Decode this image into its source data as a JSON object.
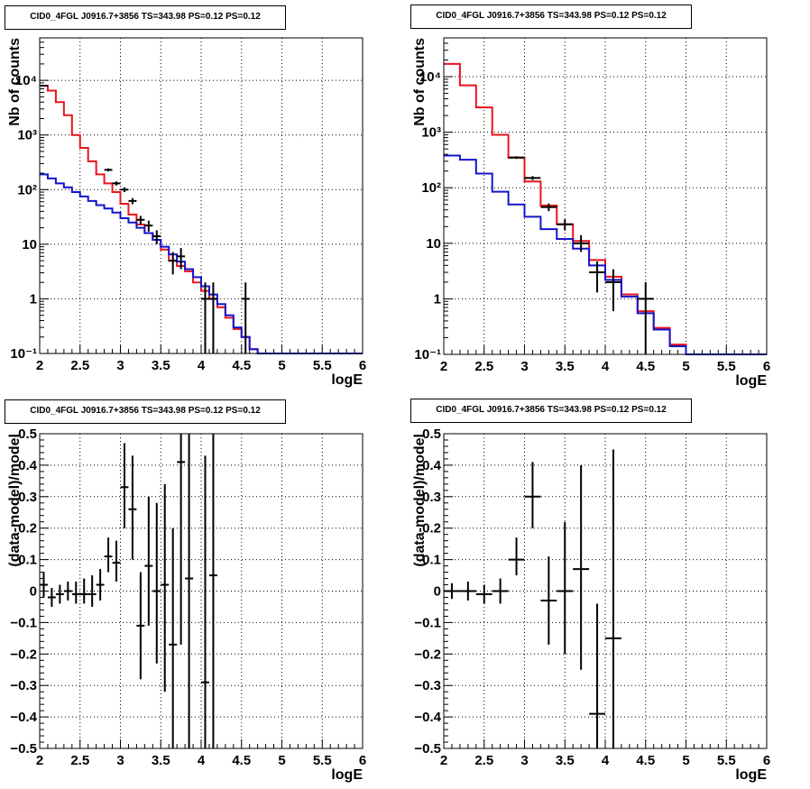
{
  "chart_data": [
    {
      "id": "p1",
      "type": "histogram",
      "title": "CID0_4FGL J0916.7+3856 TS=343.98 PS=0.12 PS=0.12",
      "xlabel": "logE",
      "ylabel": "Nb of counts",
      "xlim": [
        2,
        6
      ],
      "ylim": [
        0.1,
        60000
      ],
      "log_y": true,
      "grid": true,
      "x_ticks": [
        {
          "v": 2,
          "label": "2"
        },
        {
          "v": 2.5,
          "label": "2.5"
        },
        {
          "v": 3,
          "label": "3"
        },
        {
          "v": 3.5,
          "label": "3.5"
        },
        {
          "v": 4,
          "label": "4"
        },
        {
          "v": 4.5,
          "label": "4.5"
        },
        {
          "v": 5,
          "label": "5"
        },
        {
          "v": 5.5,
          "label": "5.5"
        },
        {
          "v": 6,
          "label": "6"
        }
      ],
      "y_ticks": [
        {
          "v": 0.1,
          "label": "10⁻¹"
        },
        {
          "v": 1,
          "label": "1"
        },
        {
          "v": 10,
          "label": "10"
        },
        {
          "v": 100,
          "label": "10²"
        },
        {
          "v": 1000,
          "label": "10³"
        },
        {
          "v": 10000,
          "label": "10⁴"
        }
      ],
      "bin_edges": [
        2.0,
        2.1,
        2.2,
        2.3,
        2.4,
        2.5,
        2.6,
        2.7,
        2.8,
        2.9,
        3.0,
        3.1,
        3.2,
        3.3,
        3.4,
        3.5,
        3.6,
        3.7,
        3.8,
        3.9,
        4.0,
        4.1,
        4.2,
        4.3,
        4.4,
        4.5,
        4.6,
        4.7,
        4.8,
        4.9,
        5.0,
        5.1,
        5.2,
        5.3,
        5.4,
        5.5,
        5.6,
        5.7,
        5.8,
        5.9,
        6.0
      ],
      "series": [
        {
          "color": "#e8131b",
          "values": [
            8000,
            6500,
            4000,
            2300,
            1000,
            580,
            330,
            190,
            130,
            90,
            55,
            35,
            23,
            16,
            12,
            8,
            5,
            4,
            3.2,
            2,
            1.4,
            1,
            0.7,
            0.45,
            0.28,
            0.2,
            0.12,
            0.1,
            0.1,
            0.1,
            0.1,
            0.1,
            0.1,
            0.1,
            0.1,
            0.1,
            0.1,
            0.1,
            0.1,
            0.1
          ]
        },
        {
          "color": "#1414cc",
          "values": [
            190,
            160,
            130,
            110,
            90,
            75,
            62,
            52,
            45,
            38,
            30,
            25,
            20,
            16,
            12,
            9,
            6.5,
            4.8,
            3.5,
            2.5,
            1.7,
            1.2,
            0.8,
            0.5,
            0.3,
            0.2,
            0.12,
            0.1,
            0.1,
            0.1,
            0.1,
            0.1,
            0.1,
            0.1,
            0.1,
            0.1,
            0.1,
            0.1,
            0.1,
            0.1
          ]
        }
      ],
      "points": [
        {
          "x": 2.05,
          "xerr": 0.05,
          "y": 8000,
          "lo": 7800,
          "hi": 8200
        },
        {
          "x": 2.85,
          "xerr": 0.05,
          "y": 230,
          "lo": 215,
          "hi": 245
        },
        {
          "x": 2.95,
          "xerr": 0.05,
          "y": 130,
          "lo": 119,
          "hi": 141
        },
        {
          "x": 3.05,
          "xerr": 0.05,
          "y": 100,
          "lo": 90,
          "hi": 110
        },
        {
          "x": 3.15,
          "xerr": 0.05,
          "y": 62,
          "lo": 54,
          "hi": 70
        },
        {
          "x": 3.25,
          "xerr": 0.05,
          "y": 28,
          "lo": 23,
          "hi": 33
        },
        {
          "x": 3.35,
          "xerr": 0.05,
          "y": 22,
          "lo": 17,
          "hi": 27
        },
        {
          "x": 3.45,
          "xerr": 0.05,
          "y": 14,
          "lo": 10,
          "hi": 18
        },
        {
          "x": 3.65,
          "xerr": 0.05,
          "y": 5,
          "lo": 2.8,
          "hi": 7.2
        },
        {
          "x": 3.75,
          "xerr": 0.05,
          "y": 6,
          "lo": 3.5,
          "hi": 8.5
        },
        {
          "x": 4.05,
          "xerr": 0.05,
          "y": 1,
          "lo": 0.1,
          "hi": 2
        },
        {
          "x": 4.15,
          "xerr": 0.05,
          "y": 1,
          "lo": 0.1,
          "hi": 2
        },
        {
          "x": 4.55,
          "xerr": 0.05,
          "y": 1,
          "lo": 0.1,
          "hi": 2
        }
      ]
    },
    {
      "id": "p2",
      "type": "histogram",
      "title": "CID0_4FGL J0916.7+3856 TS=343.98 PS=0.12 PS=0.12",
      "xlabel": "logE",
      "ylabel": "Nb of counts",
      "xlim": [
        2,
        6
      ],
      "ylim": [
        0.1,
        50000
      ],
      "log_y": true,
      "grid": true,
      "x_ticks": [
        {
          "v": 2,
          "label": "2"
        },
        {
          "v": 2.5,
          "label": "2.5"
        },
        {
          "v": 3,
          "label": "3"
        },
        {
          "v": 3.5,
          "label": "3.5"
        },
        {
          "v": 4,
          "label": "4"
        },
        {
          "v": 4.5,
          "label": "4.5"
        },
        {
          "v": 5,
          "label": "5"
        },
        {
          "v": 5.5,
          "label": "5.5"
        },
        {
          "v": 6,
          "label": "6"
        }
      ],
      "y_ticks": [
        {
          "v": 0.1,
          "label": "10⁻¹"
        },
        {
          "v": 1,
          "label": "1"
        },
        {
          "v": 10,
          "label": "10"
        },
        {
          "v": 100,
          "label": "10²"
        },
        {
          "v": 1000,
          "label": "10³"
        },
        {
          "v": 10000,
          "label": "10⁴"
        }
      ],
      "bin_edges": [
        2.0,
        2.2,
        2.4,
        2.6,
        2.8,
        3.0,
        3.2,
        3.4,
        3.6,
        3.8,
        4.0,
        4.2,
        4.4,
        4.6,
        4.8,
        5.0,
        5.2,
        5.4,
        5.6,
        5.8,
        6.0
      ],
      "series": [
        {
          "color": "#e8131b",
          "values": [
            17000,
            7000,
            2800,
            900,
            350,
            130,
            48,
            22,
            11,
            5,
            2.5,
            1.2,
            0.6,
            0.3,
            0.15,
            0.1,
            0.1,
            0.1,
            0.1,
            0.1
          ]
        },
        {
          "color": "#1414cc",
          "values": [
            380,
            320,
            180,
            85,
            50,
            30,
            18,
            12,
            8,
            4,
            2.2,
            1.1,
            0.55,
            0.28,
            0.14,
            0.1,
            0.1,
            0.1,
            0.1,
            0.1
          ]
        }
      ],
      "points": [
        {
          "x": 2.9,
          "xerr": 0.1,
          "y": 350,
          "lo": 330,
          "hi": 370
        },
        {
          "x": 3.1,
          "xerr": 0.1,
          "y": 150,
          "lo": 138,
          "hi": 162
        },
        {
          "x": 3.3,
          "xerr": 0.1,
          "y": 45,
          "lo": 38,
          "hi": 52
        },
        {
          "x": 3.5,
          "xerr": 0.1,
          "y": 22,
          "lo": 17,
          "hi": 27
        },
        {
          "x": 3.7,
          "xerr": 0.1,
          "y": 10,
          "lo": 7,
          "hi": 14
        },
        {
          "x": 3.9,
          "xerr": 0.1,
          "y": 3,
          "lo": 1.3,
          "hi": 4.7
        },
        {
          "x": 4.1,
          "xerr": 0.1,
          "y": 2,
          "lo": 0.6,
          "hi": 3.4
        },
        {
          "x": 4.5,
          "xerr": 0.1,
          "y": 1,
          "lo": 0.1,
          "hi": 2
        }
      ]
    },
    {
      "id": "p3",
      "type": "scatter",
      "title": "CID0_4FGL J0916.7+3856 TS=343.98 PS=0.12 PS=0.12",
      "xlabel": "logE",
      "ylabel": "(data-model)/model",
      "xlim": [
        2,
        6
      ],
      "ylim": [
        -0.5,
        0.5
      ],
      "log_y": false,
      "grid": true,
      "x_ticks": [
        {
          "v": 2,
          "label": "2"
        },
        {
          "v": 2.5,
          "label": "2.5"
        },
        {
          "v": 3,
          "label": "3"
        },
        {
          "v": 3.5,
          "label": "3.5"
        },
        {
          "v": 4,
          "label": "4"
        },
        {
          "v": 4.5,
          "label": "4.5"
        },
        {
          "v": 5,
          "label": "5"
        },
        {
          "v": 5.5,
          "label": "5.5"
        },
        {
          "v": 6,
          "label": "6"
        }
      ],
      "y_ticks": [
        {
          "v": -0.5,
          "label": "−0.5"
        },
        {
          "v": -0.4,
          "label": "−0.4"
        },
        {
          "v": -0.3,
          "label": "−0.3"
        },
        {
          "v": -0.2,
          "label": "−0.2"
        },
        {
          "v": -0.1,
          "label": "−0.1"
        },
        {
          "v": 0,
          "label": "0"
        },
        {
          "v": 0.1,
          "label": "0.1"
        },
        {
          "v": 0.2,
          "label": "0.2"
        },
        {
          "v": 0.3,
          "label": "0.3"
        },
        {
          "v": 0.4,
          "label": "0.4"
        },
        {
          "v": 0.5,
          "label": "0.5"
        }
      ],
      "points": [
        {
          "x": 2.05,
          "xerr": 0.05,
          "y": 0.02,
          "lo": -0.02,
          "hi": 0.06
        },
        {
          "x": 2.15,
          "xerr": 0.05,
          "y": -0.02,
          "lo": -0.05,
          "hi": 0.01
        },
        {
          "x": 2.25,
          "xerr": 0.05,
          "y": -0.01,
          "lo": -0.04,
          "hi": 0.02
        },
        {
          "x": 2.35,
          "xerr": 0.05,
          "y": 0.0,
          "lo": -0.03,
          "hi": 0.03
        },
        {
          "x": 2.45,
          "xerr": 0.05,
          "y": -0.01,
          "lo": -0.04,
          "hi": 0.03
        },
        {
          "x": 2.55,
          "xerr": 0.05,
          "y": -0.01,
          "lo": -0.04,
          "hi": 0.04
        },
        {
          "x": 2.65,
          "xerr": 0.05,
          "y": -0.01,
          "lo": -0.05,
          "hi": 0.05
        },
        {
          "x": 2.75,
          "xerr": 0.05,
          "y": 0.02,
          "lo": -0.03,
          "hi": 0.07
        },
        {
          "x": 2.85,
          "xerr": 0.05,
          "y": 0.11,
          "lo": 0.06,
          "hi": 0.17
        },
        {
          "x": 2.95,
          "xerr": 0.05,
          "y": 0.09,
          "lo": 0.03,
          "hi": 0.16
        },
        {
          "x": 3.05,
          "xerr": 0.05,
          "y": 0.33,
          "lo": 0.2,
          "hi": 0.47
        },
        {
          "x": 3.15,
          "xerr": 0.05,
          "y": 0.26,
          "lo": 0.1,
          "hi": 0.43
        },
        {
          "x": 3.25,
          "xerr": 0.05,
          "y": -0.11,
          "lo": -0.28,
          "hi": 0.06
        },
        {
          "x": 3.35,
          "xerr": 0.05,
          "y": 0.08,
          "lo": -0.11,
          "hi": 0.3
        },
        {
          "x": 3.45,
          "xerr": 0.05,
          "y": 0.0,
          "lo": -0.23,
          "hi": 0.28
        },
        {
          "x": 3.55,
          "xerr": 0.05,
          "y": 0.02,
          "lo": -0.32,
          "hi": 0.34
        },
        {
          "x": 3.65,
          "xerr": 0.05,
          "y": -0.17,
          "lo": -0.5,
          "hi": 0.2
        },
        {
          "x": 3.75,
          "xerr": 0.05,
          "y": 0.41,
          "lo": -0.17,
          "hi": 0.5
        },
        {
          "x": 3.85,
          "xerr": 0.05,
          "y": 0.04,
          "lo": -0.5,
          "hi": 0.5
        },
        {
          "x": 4.05,
          "xerr": 0.05,
          "y": -0.29,
          "lo": -0.5,
          "hi": 0.43
        },
        {
          "x": 4.15,
          "xerr": 0.05,
          "y": 0.05,
          "lo": -0.5,
          "hi": 0.5
        }
      ]
    },
    {
      "id": "p4",
      "type": "scatter",
      "title": "CID0_4FGL J0916.7+3856 TS=343.98 PS=0.12 PS=0.12",
      "xlabel": "logE",
      "ylabel": "(data-model)/model",
      "xlim": [
        2,
        6
      ],
      "ylim": [
        -0.5,
        0.5
      ],
      "log_y": false,
      "grid": true,
      "x_ticks": [
        {
          "v": 2,
          "label": "2"
        },
        {
          "v": 2.5,
          "label": "2.5"
        },
        {
          "v": 3,
          "label": "3"
        },
        {
          "v": 3.5,
          "label": "3.5"
        },
        {
          "v": 4,
          "label": "4"
        },
        {
          "v": 4.5,
          "label": "4.5"
        },
        {
          "v": 5,
          "label": "5"
        },
        {
          "v": 5.5,
          "label": "5.5"
        },
        {
          "v": 6,
          "label": "6"
        }
      ],
      "y_ticks": [
        {
          "v": -0.5,
          "label": "−0.5"
        },
        {
          "v": -0.4,
          "label": "−0.4"
        },
        {
          "v": -0.3,
          "label": "−0.3"
        },
        {
          "v": -0.2,
          "label": "−0.2"
        },
        {
          "v": -0.1,
          "label": "−0.1"
        },
        {
          "v": 0,
          "label": "0"
        },
        {
          "v": 0.1,
          "label": "0.1"
        },
        {
          "v": 0.2,
          "label": "0.2"
        },
        {
          "v": 0.3,
          "label": "0.3"
        },
        {
          "v": 0.4,
          "label": "0.4"
        },
        {
          "v": 0.5,
          "label": "0.5"
        }
      ],
      "points": [
        {
          "x": 2.1,
          "xerr": 0.1,
          "y": 0.0,
          "lo": -0.025,
          "hi": 0.025
        },
        {
          "x": 2.3,
          "xerr": 0.1,
          "y": 0.0,
          "lo": -0.03,
          "hi": 0.03
        },
        {
          "x": 2.5,
          "xerr": 0.1,
          "y": -0.01,
          "lo": -0.04,
          "hi": 0.02
        },
        {
          "x": 2.7,
          "xerr": 0.1,
          "y": 0.0,
          "lo": -0.04,
          "hi": 0.04
        },
        {
          "x": 2.9,
          "xerr": 0.1,
          "y": 0.1,
          "lo": 0.05,
          "hi": 0.17
        },
        {
          "x": 3.1,
          "xerr": 0.1,
          "y": 0.3,
          "lo": 0.2,
          "hi": 0.41
        },
        {
          "x": 3.3,
          "xerr": 0.1,
          "y": -0.03,
          "lo": -0.17,
          "hi": 0.11
        },
        {
          "x": 3.5,
          "xerr": 0.1,
          "y": 0.0,
          "lo": -0.2,
          "hi": 0.22
        },
        {
          "x": 3.7,
          "xerr": 0.1,
          "y": 0.07,
          "lo": -0.25,
          "hi": 0.4
        },
        {
          "x": 3.9,
          "xerr": 0.1,
          "y": -0.39,
          "lo": -0.5,
          "hi": -0.04
        },
        {
          "x": 4.1,
          "xerr": 0.1,
          "y": -0.15,
          "lo": -0.5,
          "hi": 0.45
        }
      ]
    }
  ]
}
